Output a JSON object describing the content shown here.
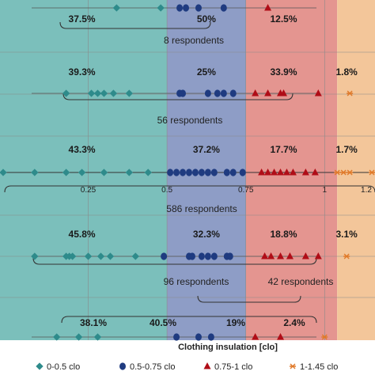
{
  "chart_data": {
    "type": "scatter",
    "xlabel": "Clothing insulation [clo]",
    "x_ticks": [
      "0.25",
      "0.5",
      "0.75",
      "1",
      "1.2"
    ],
    "xlim": [
      -0.03,
      1.16
    ],
    "zones": [
      {
        "from": -0.03,
        "to": 0.5,
        "color": "#7bbfbb"
      },
      {
        "from": 0.5,
        "to": 0.75,
        "color": "#8e9dc6"
      },
      {
        "from": 0.75,
        "to": 1.04,
        "color": "#e49590"
      },
      {
        "from": 1.04,
        "to": 1.16,
        "color": "#f3c69a"
      }
    ],
    "legend": [
      {
        "label": "0-0.5 clo",
        "color": "#2e8b8b",
        "marker": "diamond"
      },
      {
        "label": "0.5-0.75 clo",
        "color": "#1f3b80",
        "marker": "circle"
      },
      {
        "label": "0.75-1 clo",
        "color": "#b00d17",
        "marker": "triangle"
      },
      {
        "label": "1-1.45 clo",
        "color": "#e07a2a",
        "marker": "asterisk"
      }
    ],
    "rows": [
      {
        "percentages": [
          "37.5%",
          "50%",
          "12.5%",
          ""
        ],
        "respondents": "8 respondents",
        "points": [
          {
            "x": 0.34,
            "s": 0
          },
          {
            "x": 0.48,
            "s": 0
          },
          {
            "x": 0.54,
            "s": 1
          },
          {
            "x": 0.56,
            "s": 1
          },
          {
            "x": 0.6,
            "s": 1
          },
          {
            "x": 0.68,
            "s": 1
          },
          {
            "x": 0.82,
            "s": 2
          }
        ]
      },
      {
        "percentages": [
          "39.3%",
          "25%",
          "33.9%",
          "1.8%"
        ],
        "respondents": "56 respondents",
        "points": [
          {
            "x": 0.18,
            "s": 0
          },
          {
            "x": 0.26,
            "s": 0
          },
          {
            "x": 0.28,
            "s": 0
          },
          {
            "x": 0.3,
            "s": 0
          },
          {
            "x": 0.33,
            "s": 0
          },
          {
            "x": 0.38,
            "s": 0
          },
          {
            "x": 0.54,
            "s": 1
          },
          {
            "x": 0.55,
            "s": 1
          },
          {
            "x": 0.63,
            "s": 1
          },
          {
            "x": 0.66,
            "s": 1
          },
          {
            "x": 0.68,
            "s": 1
          },
          {
            "x": 0.71,
            "s": 1
          },
          {
            "x": 0.78,
            "s": 2
          },
          {
            "x": 0.82,
            "s": 2
          },
          {
            "x": 0.86,
            "s": 2
          },
          {
            "x": 0.87,
            "s": 2
          },
          {
            "x": 0.98,
            "s": 2
          },
          {
            "x": 1.08,
            "s": 3
          }
        ]
      },
      {
        "percentages": [
          "43.3%",
          "37.2%",
          "17.7%",
          "1.7%"
        ],
        "respondents": "586 respondents",
        "points": [
          {
            "x": -0.02,
            "s": 0
          },
          {
            "x": 0.08,
            "s": 0
          },
          {
            "x": 0.18,
            "s": 0
          },
          {
            "x": 0.23,
            "s": 0
          },
          {
            "x": 0.3,
            "s": 0
          },
          {
            "x": 0.38,
            "s": 0
          },
          {
            "x": 0.44,
            "s": 0
          },
          {
            "x": 0.51,
            "s": 1
          },
          {
            "x": 0.53,
            "s": 1
          },
          {
            "x": 0.55,
            "s": 1
          },
          {
            "x": 0.57,
            "s": 1
          },
          {
            "x": 0.59,
            "s": 1
          },
          {
            "x": 0.61,
            "s": 1
          },
          {
            "x": 0.63,
            "s": 1
          },
          {
            "x": 0.65,
            "s": 1
          },
          {
            "x": 0.69,
            "s": 1
          },
          {
            "x": 0.71,
            "s": 1
          },
          {
            "x": 0.74,
            "s": 1
          },
          {
            "x": 0.8,
            "s": 2
          },
          {
            "x": 0.82,
            "s": 2
          },
          {
            "x": 0.84,
            "s": 2
          },
          {
            "x": 0.86,
            "s": 2
          },
          {
            "x": 0.88,
            "s": 2
          },
          {
            "x": 0.9,
            "s": 2
          },
          {
            "x": 0.94,
            "s": 2
          },
          {
            "x": 0.97,
            "s": 2
          },
          {
            "x": 1.04,
            "s": 3
          },
          {
            "x": 1.06,
            "s": 3
          },
          {
            "x": 1.08,
            "s": 3
          },
          {
            "x": 1.15,
            "s": 3
          }
        ]
      },
      {
        "percentages": [
          "45.8%",
          "32.3%",
          "18.8%",
          "3.1%"
        ],
        "respondents": "96 respondents",
        "points": [
          {
            "x": 0.08,
            "s": 0
          },
          {
            "x": 0.18,
            "s": 0
          },
          {
            "x": 0.19,
            "s": 0
          },
          {
            "x": 0.2,
            "s": 0
          },
          {
            "x": 0.25,
            "s": 0
          },
          {
            "x": 0.29,
            "s": 0
          },
          {
            "x": 0.32,
            "s": 0
          },
          {
            "x": 0.4,
            "s": 0
          },
          {
            "x": 0.49,
            "s": 1
          },
          {
            "x": 0.57,
            "s": 1
          },
          {
            "x": 0.58,
            "s": 1
          },
          {
            "x": 0.61,
            "s": 1
          },
          {
            "x": 0.63,
            "s": 1
          },
          {
            "x": 0.65,
            "s": 1
          },
          {
            "x": 0.69,
            "s": 1
          },
          {
            "x": 0.7,
            "s": 1
          },
          {
            "x": 0.81,
            "s": 2
          },
          {
            "x": 0.83,
            "s": 2
          },
          {
            "x": 0.86,
            "s": 2
          },
          {
            "x": 0.89,
            "s": 2
          },
          {
            "x": 0.94,
            "s": 2
          },
          {
            "x": 0.98,
            "s": 2
          },
          {
            "x": 1.07,
            "s": 3
          }
        ]
      },
      {
        "percentages": [
          "38.1%",
          "40.5%",
          "19%",
          "2.4%"
        ],
        "respondents": "42 respondents",
        "points": [
          {
            "x": 0.15,
            "s": 0
          },
          {
            "x": 0.22,
            "s": 0
          },
          {
            "x": 0.28,
            "s": 0
          },
          {
            "x": 0.53,
            "s": 1
          },
          {
            "x": 0.6,
            "s": 1
          },
          {
            "x": 0.64,
            "s": 1
          },
          {
            "x": 0.78,
            "s": 2
          },
          {
            "x": 0.86,
            "s": 2
          },
          {
            "x": 1.0,
            "s": 3
          }
        ]
      }
    ]
  }
}
